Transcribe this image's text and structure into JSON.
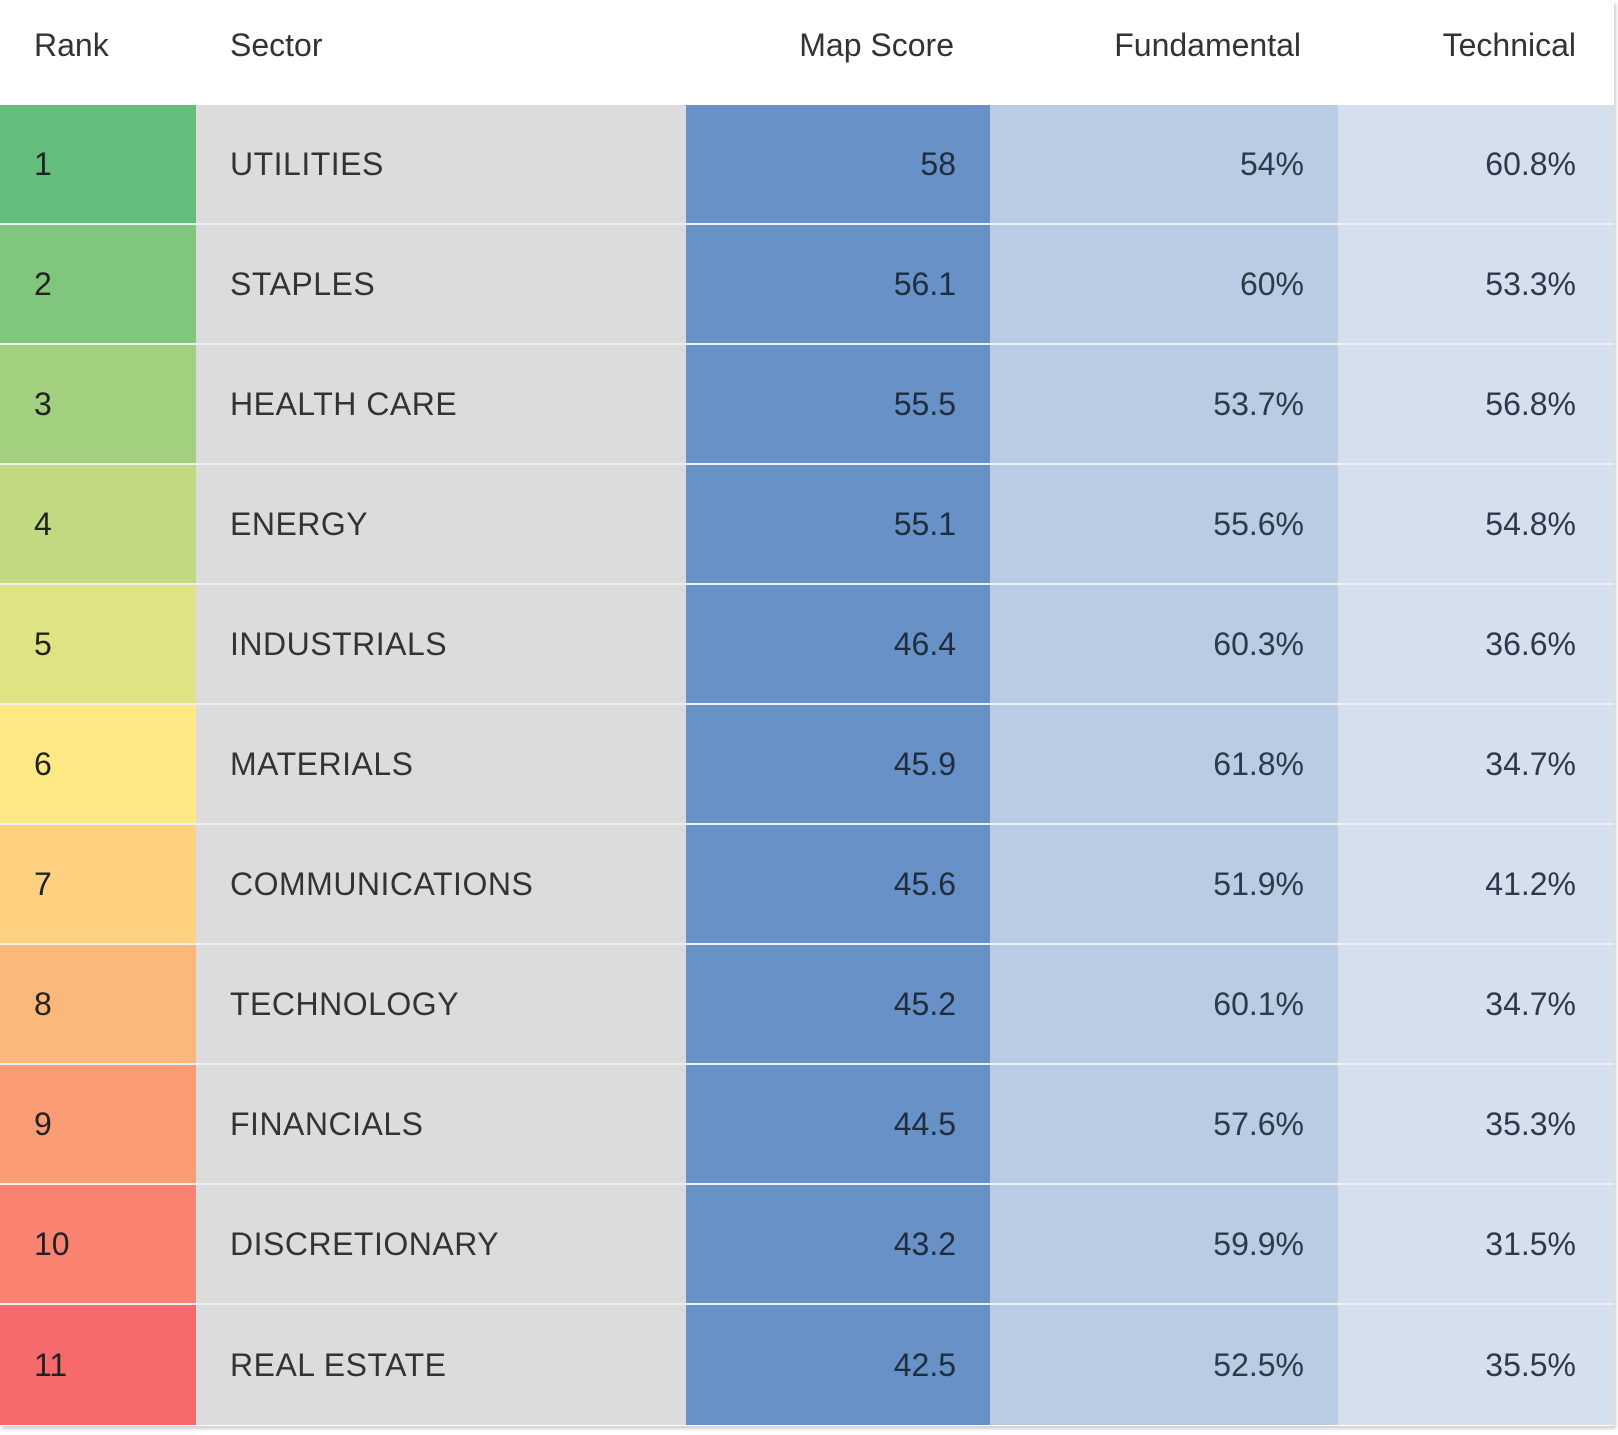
{
  "header": {
    "rank": "Rank",
    "sector": "Sector",
    "score": "Map Score",
    "fundamental": "Fundamental",
    "technical": "Technical"
  },
  "colors": {
    "sector_bg": "#dcdcdc",
    "score_bg": "#6891c8",
    "fundamental_bg": "#b9cce4",
    "technical_bg": "#d5e0ee"
  },
  "rows": [
    {
      "rank": "1",
      "sector": "UTILITIES",
      "score": "58",
      "fundamental": "54%",
      "technical": "60.8%",
      "rank_color": "#63be7b"
    },
    {
      "rank": "2",
      "sector": "STAPLES",
      "score": "56.1",
      "fundamental": "60%",
      "technical": "53.3%",
      "rank_color": "#80c67c"
    },
    {
      "rank": "3",
      "sector": "HEALTH CARE",
      "score": "55.5",
      "fundamental": "53.7%",
      "technical": "56.8%",
      "rank_color": "#a2d07f"
    },
    {
      "rank": "4",
      "sector": "ENERGY",
      "score": "55.1",
      "fundamental": "55.6%",
      "technical": "54.8%",
      "rank_color": "#c1da81"
    },
    {
      "rank": "5",
      "sector": "INDUSTRIALS",
      "score": "46.4",
      "fundamental": "60.3%",
      "technical": "36.6%",
      "rank_color": "#e0e383"
    },
    {
      "rank": "6",
      "sector": "MATERIALS",
      "score": "45.9",
      "fundamental": "61.8%",
      "technical": "34.7%",
      "rank_color": "#ffe984"
    },
    {
      "rank": "7",
      "sector": "COMMUNICATIONS",
      "score": "45.6",
      "fundamental": "51.9%",
      "technical": "41.2%",
      "rank_color": "#fdd17f"
    },
    {
      "rank": "8",
      "sector": "TECHNOLOGY",
      "score": "45.2",
      "fundamental": "60.1%",
      "technical": "34.7%",
      "rank_color": "#fcb77a"
    },
    {
      "rank": "9",
      "sector": "FINANCIALS",
      "score": "44.5",
      "fundamental": "57.6%",
      "technical": "35.3%",
      "rank_color": "#fa9d75"
    },
    {
      "rank": "10",
      "sector": "DISCRETIONARY",
      "score": "43.2",
      "fundamental": "59.9%",
      "technical": "31.5%",
      "rank_color": "#f98370"
    },
    {
      "rank": "11",
      "sector": "REAL ESTATE",
      "score": "42.5",
      "fundamental": "52.5%",
      "technical": "35.5%",
      "rank_color": "#f8696b"
    }
  ]
}
